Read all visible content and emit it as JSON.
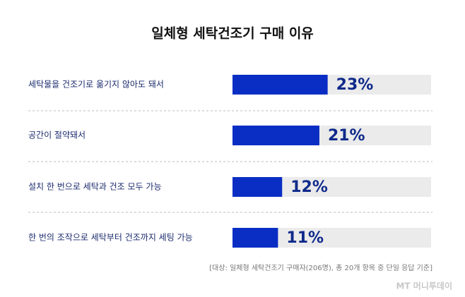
{
  "chart_data": {
    "type": "bar",
    "orientation": "horizontal",
    "title": "일체형 세탁건조기 구매 이유",
    "categories": [
      "세탁물을 건조기로 옮기지 않아도 돼서",
      "공간이 절약돼서",
      "설치 한 번으로 세탁과 건조 모두 가능",
      "한 번의 조작으로 세탁부터 건조까지 세팅 가능"
    ],
    "values": [
      23,
      21,
      12,
      11
    ],
    "value_labels": [
      "23%",
      "21%",
      "12%",
      "11%"
    ],
    "color": "#0a2ec4",
    "xlim": [
      0,
      48
    ],
    "note": "[대상: 일체형 세탁건조기 구매자(206명), 총 20개 항목 중 단일 응답 기준]",
    "source": "MT 머니투데이"
  }
}
